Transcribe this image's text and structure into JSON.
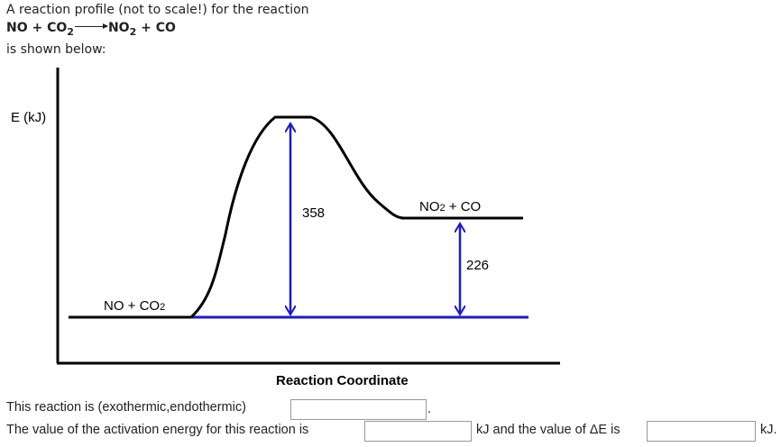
{
  "intro": {
    "line1": "A reaction profile (not to scale!) for the reaction",
    "reaction": {
      "reactant1": "NO",
      "plus1": "+",
      "reactant2": "CO",
      "reactant2_sub": "2",
      "product1": "NO",
      "product1_sub": "2",
      "plus2": "+",
      "product2": "CO"
    },
    "line3": "is shown below:"
  },
  "diagram": {
    "y_axis_label": "E (kJ)",
    "x_axis_label": "Reaction Coordinate",
    "reactants_label": "NO + CO",
    "reactants_sub": "2",
    "products_label_a": "NO",
    "products_sub": "2",
    "products_label_b": " + CO",
    "activation_energy_label": "358",
    "delta_e_label": "226",
    "arrow_color": "#1a1acc"
  },
  "questions": {
    "q1_text": "This reaction is (exothermic,endothermic)",
    "q1_value": "",
    "q1_end": ".",
    "q2_text": "The value of the activation energy for this reaction is",
    "q2_value": "",
    "q2_mid": "kJ and the value of ΔE is",
    "q3_value": "",
    "q2_end": "kJ."
  }
}
